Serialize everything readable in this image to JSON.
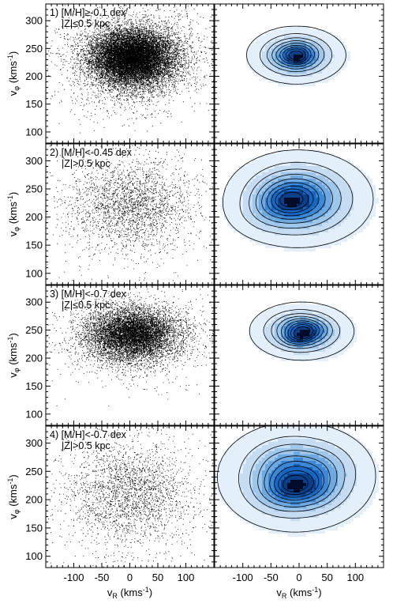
{
  "figure": {
    "x_label": {
      "main": "v",
      "sub": "R",
      "unit_pre": " (kms",
      "unit_exp": "-1",
      "unit_post": ")"
    },
    "y_label": {
      "main": "v",
      "sub": "φ",
      "unit_pre": " (kms",
      "unit_exp": "-1",
      "unit_post": ")"
    },
    "left_column": "scatter",
    "right_column": "density contour (blue filled with black contour lines)"
  },
  "colors": {
    "axes": "#000000",
    "points": "#000000",
    "density_ramp": [
      "#ffffff",
      "#e3effa",
      "#c6dcf3",
      "#9fc7ec",
      "#6fa9e2",
      "#3c88d6",
      "#1667c4",
      "#0b3f8a",
      "#000c2a"
    ],
    "contour_line": "#000000"
  },
  "chart_data": [
    {
      "type": "scatter",
      "panel": 1,
      "label_line1": "1) [M/H]≥-0.1 dex",
      "label_line2": "|Z|≤0.5 kpc",
      "x_range": [
        -150,
        150
      ],
      "y_range": [
        80,
        330
      ],
      "x_ticks": [
        -100,
        -50,
        0,
        50,
        100
      ],
      "y_ticks": [
        100,
        150,
        200,
        250,
        300
      ],
      "center": [
        5,
        237
      ],
      "dispersion": [
        38,
        24
      ],
      "density": "very high"
    },
    {
      "type": "heatmap",
      "panel": 1,
      "x_range": [
        -150,
        150
      ],
      "y_range": [
        80,
        330
      ],
      "x_ticks": [
        -100,
        -50,
        0,
        50,
        100
      ],
      "y_ticks": [
        100,
        150,
        200,
        250,
        300
      ],
      "peak": [
        -5,
        238
      ],
      "spread": [
        34,
        20
      ]
    },
    {
      "type": "scatter",
      "panel": 2,
      "label_line1": "2) [M/H]<-0.45 dex",
      "label_line2": "|Z|>0.5 kpc",
      "x_range": [
        -150,
        150
      ],
      "y_range": [
        80,
        330
      ],
      "x_ticks": [
        -100,
        -50,
        0,
        50,
        100
      ],
      "y_ticks": [
        100,
        150,
        200,
        250,
        300
      ],
      "center": [
        0,
        225
      ],
      "dispersion": [
        55,
        38
      ],
      "density": "low"
    },
    {
      "type": "heatmap",
      "panel": 2,
      "x_range": [
        -150,
        150
      ],
      "y_range": [
        80,
        330
      ],
      "x_ticks": [
        -100,
        -50,
        0,
        50,
        100
      ],
      "y_ticks": [
        100,
        150,
        200,
        250,
        300
      ],
      "peak": [
        0,
        232
      ],
      "spread": [
        52,
        34
      ]
    },
    {
      "type": "scatter",
      "panel": 3,
      "label_line1": "3) [M/H]<-0.7 dex",
      "label_line2": "|Z|≤0.5 kpc",
      "x_range": [
        -150,
        150
      ],
      "y_range": [
        80,
        330
      ],
      "x_ticks": [
        -100,
        -50,
        0,
        50,
        100
      ],
      "y_ticks": [
        100,
        150,
        200,
        250,
        300
      ],
      "center": [
        5,
        245
      ],
      "dispersion": [
        40,
        22
      ],
      "density": "high"
    },
    {
      "type": "heatmap",
      "panel": 3,
      "x_range": [
        -150,
        150
      ],
      "y_range": [
        80,
        330
      ],
      "x_ticks": [
        -100,
        -50,
        0,
        50,
        100
      ],
      "y_ticks": [
        100,
        150,
        200,
        250,
        300
      ],
      "peak": [
        5,
        248
      ],
      "spread": [
        36,
        20
      ]
    },
    {
      "type": "scatter",
      "panel": 4,
      "label_line1": "4) [M/H]<-0.7 dex",
      "label_line2": "|Z|>0.5 kpc",
      "x_range": [
        -150,
        150
      ],
      "y_range": [
        80,
        330
      ],
      "x_ticks": [
        -100,
        -50,
        0,
        50,
        100
      ],
      "y_ticks": [
        100,
        150,
        200,
        250,
        300
      ],
      "center": [
        0,
        215
      ],
      "dispersion": [
        55,
        45
      ],
      "density": "low"
    },
    {
      "type": "heatmap",
      "panel": 4,
      "x_range": [
        -150,
        150
      ],
      "y_range": [
        80,
        330
      ],
      "x_ticks": [
        -100,
        -50,
        0,
        50,
        100
      ],
      "y_ticks": [
        100,
        150,
        200,
        250,
        300
      ],
      "peak": [
        -5,
        240
      ],
      "spread": [
        55,
        38
      ]
    }
  ]
}
